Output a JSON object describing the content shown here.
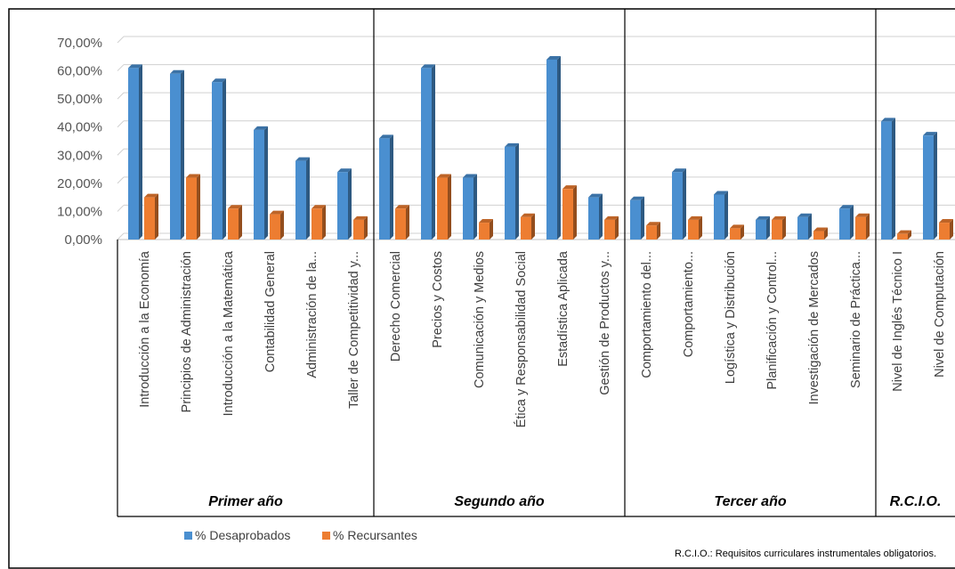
{
  "chart_data": {
    "type": "bar",
    "categories": [
      "Introducción a la Economía",
      "Principios de Administración",
      "Introducción a la Matemática",
      "Contabilidad General",
      "Administración de la...",
      "Taller de Competitividad y...",
      "Derecho Comercial",
      "Precios y Costos",
      "Comunicación y Medios",
      "Ética y Responsabilidad Social",
      "Estadística Aplicada",
      "Gestión de Productos y...",
      "Comportamiento del...",
      "Comportamiento...",
      "Logística y Distribución",
      "Planificación y Control...",
      "Investigación de Mercados",
      "Seminario de Práctica...",
      "Nivel de Inglés Técnico I",
      "Nivel de Computación"
    ],
    "groups": [
      {
        "label": "Primer año",
        "count": 6
      },
      {
        "label": "Segundo año",
        "count": 6
      },
      {
        "label": "Tercer año",
        "count": 6
      },
      {
        "label": "R.C.I.O.",
        "count": 2
      }
    ],
    "series": [
      {
        "name": "% Desaprobados",
        "color": "#4A8FD0",
        "values": [
          61,
          59,
          56,
          39,
          28,
          24,
          36,
          61,
          22,
          33,
          64,
          15,
          14,
          24,
          16,
          7,
          8,
          11,
          42,
          37
        ]
      },
      {
        "name": "% Recursantes",
        "color": "#ED7D31",
        "values": [
          15,
          22,
          11,
          9,
          11,
          7,
          11,
          22,
          6,
          8,
          18,
          7,
          5,
          7,
          4,
          7,
          3,
          8,
          2,
          6
        ]
      }
    ],
    "y_ticks": [
      "0,00%",
      "10,00%",
      "20,00%",
      "30,00%",
      "40,00%",
      "50,00%",
      "60,00%",
      "70,00%"
    ],
    "ylim": [
      0,
      70
    ],
    "grid": true,
    "legend_position": "bottom-left",
    "footnote": "R.C.I.O.: Requisitos curriculares instrumentales obligatorios."
  }
}
